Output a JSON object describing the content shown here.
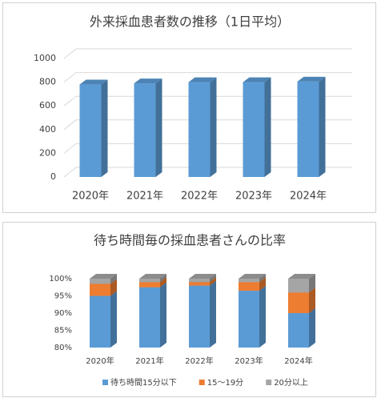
{
  "chart_data": [
    {
      "type": "bar3d",
      "title": "外来採血患者数の推移（1日平均）",
      "categories": [
        "2020年",
        "2021年",
        "2022年",
        "2023年",
        "2024年"
      ],
      "values": [
        780,
        790,
        800,
        800,
        805
      ],
      "color": "#5b9bd5",
      "ylim": [
        0,
        1000
      ],
      "yticks": [
        0,
        200,
        400,
        600,
        800,
        1000
      ],
      "grid": true
    },
    {
      "type": "stacked3d",
      "title": "待ち時間毎の採血患者さんの比率",
      "categories": [
        "2020年",
        "2021年",
        "2022年",
        "2023年",
        "2024年"
      ],
      "series": [
        {
          "name": "待ち時間15分以下",
          "color": "#5b9bd5",
          "values": [
            95,
            97.5,
            98,
            96.5,
            90
          ]
        },
        {
          "name": "15～19分",
          "color": "#ed7d31",
          "values": [
            3.5,
            1.5,
            1,
            2.5,
            6
          ]
        },
        {
          "name": "20分以上",
          "color": "#a5a5a5",
          "values": [
            1.5,
            1,
            1,
            1,
            4
          ]
        }
      ],
      "ylim": [
        80,
        100
      ],
      "yticks": [
        {
          "value": 80,
          "label": "80%"
        },
        {
          "value": 85,
          "label": "85%"
        },
        {
          "value": 90,
          "label": "90%"
        },
        {
          "value": 95,
          "label": "95%"
        },
        {
          "value": 100,
          "label": "100%"
        }
      ],
      "grid": false,
      "legend": "bottom"
    }
  ]
}
